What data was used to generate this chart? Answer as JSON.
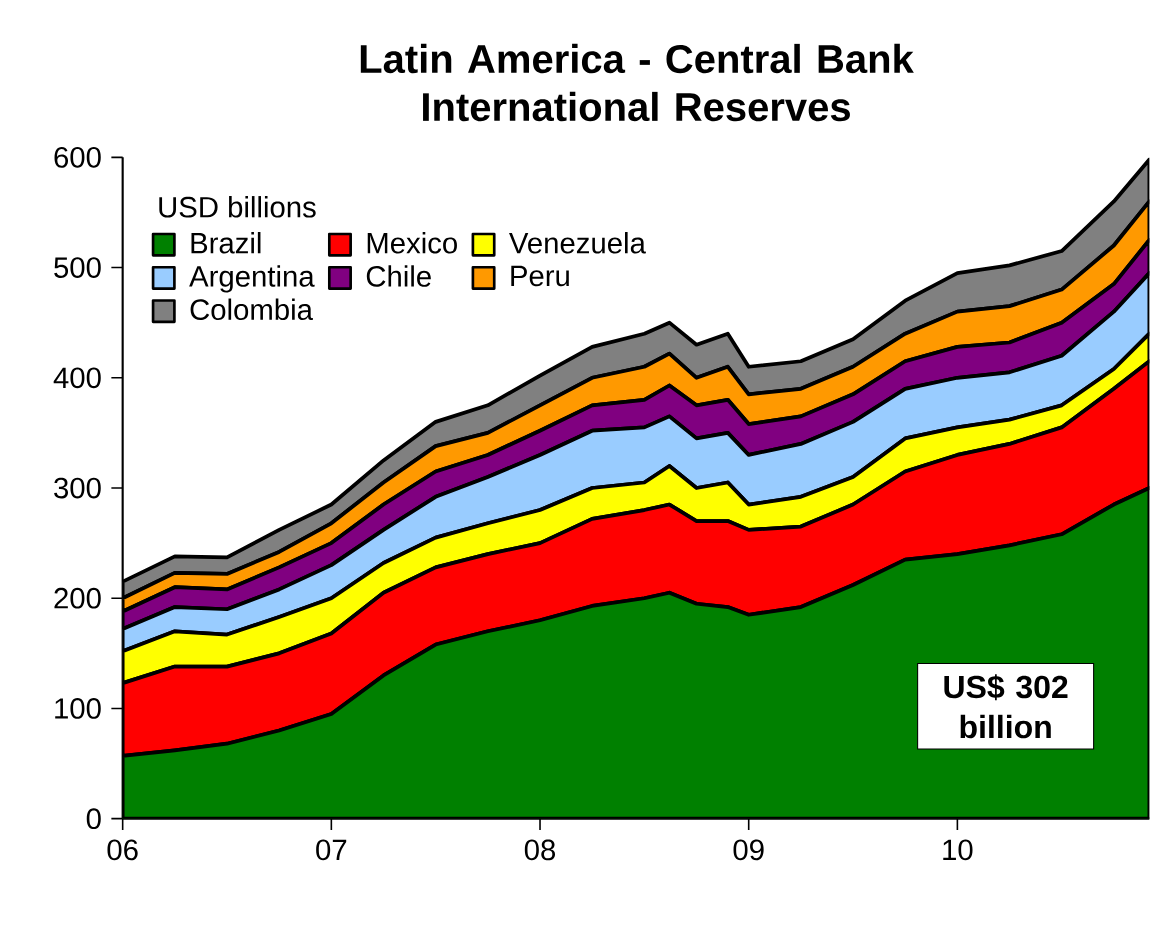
{
  "chart_data": {
    "type": "area",
    "title": "Latin America - Central Bank International Reserves",
    "legend_title": "USD billions",
    "stacked": true,
    "legend": "top left",
    "x": [
      2006.0,
      2006.25,
      2006.5,
      2006.75,
      2007.0,
      2007.25,
      2007.5,
      2007.75,
      2008.0,
      2008.25,
      2008.5,
      2008.62,
      2008.75,
      2008.9,
      2009.0,
      2009.25,
      2009.5,
      2009.75,
      2010.0,
      2010.25,
      2010.5,
      2010.75,
      2010.92
    ],
    "xlim": [
      2006,
      2010.92
    ],
    "ylim": [
      0,
      600
    ],
    "xticks": [
      {
        "value": 2006,
        "label": "06"
      },
      {
        "value": 2007,
        "label": "07"
      },
      {
        "value": 2008,
        "label": "08"
      },
      {
        "value": 2009,
        "label": "09"
      },
      {
        "value": 2010,
        "label": "10"
      }
    ],
    "yticks": [
      0,
      100,
      200,
      300,
      400,
      500,
      600
    ],
    "series": [
      {
        "name": "Brazil",
        "color": "#008000",
        "values": [
          57,
          62,
          68,
          80,
          95,
          130,
          158,
          170,
          180,
          193,
          200,
          205,
          195,
          192,
          185,
          192,
          212,
          235,
          240,
          248,
          258,
          285,
          300
        ]
      },
      {
        "name": "Mexico",
        "color": "#ff0000",
        "values": [
          66,
          76,
          70,
          70,
          73,
          75,
          70,
          70,
          70,
          79,
          80,
          80,
          75,
          78,
          77,
          73,
          73,
          80,
          90,
          92,
          97,
          105,
          115
        ]
      },
      {
        "name": "Venezuela",
        "color": "#ffff00",
        "values": [
          29,
          32,
          29,
          33,
          32,
          27,
          27,
          28,
          30,
          28,
          25,
          35,
          30,
          35,
          23,
          27,
          25,
          30,
          25,
          22,
          20,
          18,
          25
        ]
      },
      {
        "name": "Argentina",
        "color": "#99ccff",
        "values": [
          20,
          22,
          23,
          25,
          30,
          30,
          37,
          42,
          50,
          52,
          50,
          45,
          45,
          45,
          45,
          48,
          50,
          45,
          45,
          43,
          45,
          52,
          55
        ]
      },
      {
        "name": "Chile",
        "color": "#800080",
        "values": [
          16,
          18,
          18,
          20,
          20,
          23,
          23,
          20,
          22,
          23,
          25,
          28,
          30,
          30,
          28,
          25,
          25,
          25,
          28,
          27,
          30,
          25,
          30
        ]
      },
      {
        "name": "Peru",
        "color": "#ff9900",
        "values": [
          12,
          13,
          14,
          14,
          18,
          20,
          23,
          20,
          23,
          25,
          30,
          29,
          25,
          30,
          27,
          25,
          25,
          25,
          32,
          33,
          30,
          35,
          35
        ]
      },
      {
        "name": "Colombia",
        "color": "#808080",
        "values": [
          15,
          15,
          15,
          20,
          17,
          20,
          22,
          25,
          27,
          28,
          30,
          28,
          30,
          30,
          25,
          25,
          25,
          30,
          35,
          37,
          35,
          40,
          38
        ]
      }
    ],
    "annotations": [
      "US$ 302 billion"
    ]
  }
}
